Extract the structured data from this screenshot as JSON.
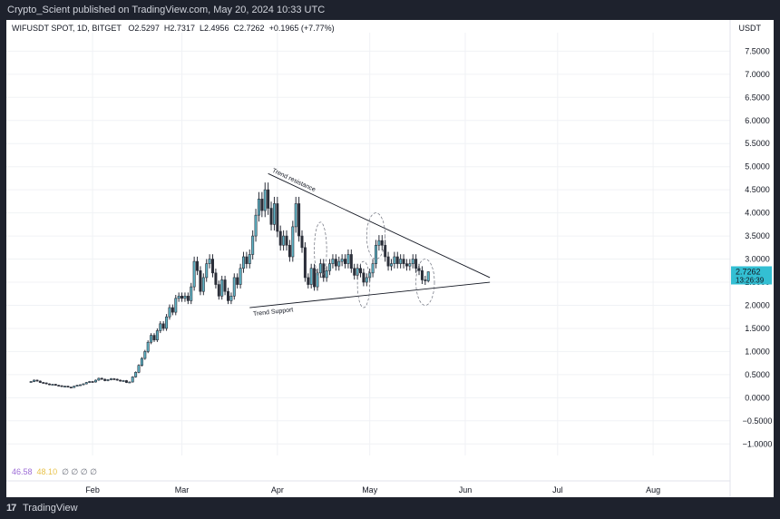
{
  "header": {
    "published_by": "Crypto_Scient published on TradingView.com, May 20, 2024 10:33 UTC"
  },
  "legend": {
    "symbol": "WIFUSDT SPOT, 1D, BITGET",
    "open": "O2.5297",
    "high": "H2.7317",
    "low": "L2.4956",
    "close": "C2.7262",
    "change": "+0.1965 (+7.77%)"
  },
  "axis": {
    "currency": "USDT",
    "last_price": "2.7262",
    "countdown": "13:26:39"
  },
  "oscillator": {
    "value1": "46.58",
    "value2": "48.10",
    "placeholders": "∅ ∅ ∅ ∅"
  },
  "footer": {
    "logo": "17",
    "brand": "TradingView"
  },
  "chart_data": {
    "type": "candlestick",
    "y_axis": {
      "ticks": [
        -1.0,
        -0.5,
        0.0,
        0.5,
        1.0,
        1.5,
        2.0,
        2.5,
        3.0,
        3.5,
        4.0,
        4.5,
        5.0,
        5.5,
        6.0,
        6.5,
        7.0,
        7.5
      ],
      "tick_labels": [
        "−1.0000",
        "−0.5000",
        "0.0000",
        "0.5000",
        "1.0000",
        "1.5000",
        "2.0000",
        "2.5000",
        "3.0000",
        "3.5000",
        "4.0000",
        "4.5000",
        "5.0000",
        "5.5000",
        "6.0000",
        "6.5000",
        "7.0000",
        "7.5000"
      ],
      "range": [
        -1.25,
        7.9
      ]
    },
    "x_axis": {
      "labels": [
        "Feb",
        "Mar",
        "Apr",
        "May",
        "Jun",
        "Jul",
        "Aug"
      ],
      "label_dates": [
        "2024-02-01",
        "2024-03-01",
        "2024-04-01",
        "2024-05-01",
        "2024-06-01",
        "2024-07-01",
        "2024-08-01"
      ],
      "range": [
        "2024-01-04",
        "2024-08-26"
      ]
    },
    "closes": [
      {
        "date": "2024-01-12",
        "value": 0.35
      },
      {
        "date": "2024-01-13",
        "value": 0.38
      },
      {
        "date": "2024-01-14",
        "value": 0.36
      },
      {
        "date": "2024-01-15",
        "value": 0.33
      },
      {
        "date": "2024-01-16",
        "value": 0.32
      },
      {
        "date": "2024-01-17",
        "value": 0.3
      },
      {
        "date": "2024-01-18",
        "value": 0.28
      },
      {
        "date": "2024-01-19",
        "value": 0.29
      },
      {
        "date": "2024-01-20",
        "value": 0.27
      },
      {
        "date": "2024-01-21",
        "value": 0.26
      },
      {
        "date": "2024-01-22",
        "value": 0.24
      },
      {
        "date": "2024-01-23",
        "value": 0.25
      },
      {
        "date": "2024-01-24",
        "value": 0.23
      },
      {
        "date": "2024-01-25",
        "value": 0.22
      },
      {
        "date": "2024-01-26",
        "value": 0.25
      },
      {
        "date": "2024-01-27",
        "value": 0.27
      },
      {
        "date": "2024-01-28",
        "value": 0.28
      },
      {
        "date": "2024-01-29",
        "value": 0.3
      },
      {
        "date": "2024-01-30",
        "value": 0.33
      },
      {
        "date": "2024-01-31",
        "value": 0.35
      },
      {
        "date": "2024-02-01",
        "value": 0.34
      },
      {
        "date": "2024-02-02",
        "value": 0.38
      },
      {
        "date": "2024-02-03",
        "value": 0.42
      },
      {
        "date": "2024-02-04",
        "value": 0.4
      },
      {
        "date": "2024-02-05",
        "value": 0.37
      },
      {
        "date": "2024-02-06",
        "value": 0.39
      },
      {
        "date": "2024-02-07",
        "value": 0.41
      },
      {
        "date": "2024-02-08",
        "value": 0.4
      },
      {
        "date": "2024-02-09",
        "value": 0.38
      },
      {
        "date": "2024-02-10",
        "value": 0.36
      },
      {
        "date": "2024-02-11",
        "value": 0.37
      },
      {
        "date": "2024-02-12",
        "value": 0.33
      },
      {
        "date": "2024-02-13",
        "value": 0.34
      },
      {
        "date": "2024-02-14",
        "value": 0.45
      },
      {
        "date": "2024-02-15",
        "value": 0.55
      },
      {
        "date": "2024-02-16",
        "value": 0.7
      },
      {
        "date": "2024-02-17",
        "value": 0.85
      },
      {
        "date": "2024-02-18",
        "value": 1.0
      },
      {
        "date": "2024-02-19",
        "value": 1.2
      },
      {
        "date": "2024-02-20",
        "value": 1.35
      },
      {
        "date": "2024-02-21",
        "value": 1.25
      },
      {
        "date": "2024-02-22",
        "value": 1.45
      },
      {
        "date": "2024-02-23",
        "value": 1.6
      },
      {
        "date": "2024-02-24",
        "value": 1.5
      },
      {
        "date": "2024-02-25",
        "value": 1.75
      },
      {
        "date": "2024-02-26",
        "value": 1.95
      },
      {
        "date": "2024-02-27",
        "value": 1.85
      },
      {
        "date": "2024-02-28",
        "value": 2.15
      },
      {
        "date": "2024-02-29",
        "value": 2.2
      },
      {
        "date": "2024-03-01",
        "value": 2.15
      },
      {
        "date": "2024-03-02",
        "value": 2.2
      },
      {
        "date": "2024-03-03",
        "value": 2.1
      },
      {
        "date": "2024-03-04",
        "value": 2.4
      },
      {
        "date": "2024-03-05",
        "value": 2.95
      },
      {
        "date": "2024-03-06",
        "value": 2.75
      },
      {
        "date": "2024-03-07",
        "value": 2.3
      },
      {
        "date": "2024-03-08",
        "value": 2.6
      },
      {
        "date": "2024-03-09",
        "value": 2.9
      },
      {
        "date": "2024-03-10",
        "value": 3.0
      },
      {
        "date": "2024-03-11",
        "value": 2.7
      },
      {
        "date": "2024-03-12",
        "value": 2.45
      },
      {
        "date": "2024-03-13",
        "value": 2.2
      },
      {
        "date": "2024-03-14",
        "value": 2.55
      },
      {
        "date": "2024-03-15",
        "value": 2.3
      },
      {
        "date": "2024-03-16",
        "value": 2.1
      },
      {
        "date": "2024-03-17",
        "value": 2.2
      },
      {
        "date": "2024-03-18",
        "value": 2.6
      },
      {
        "date": "2024-03-19",
        "value": 2.45
      },
      {
        "date": "2024-03-20",
        "value": 2.8
      },
      {
        "date": "2024-03-21",
        "value": 3.05
      },
      {
        "date": "2024-03-22",
        "value": 2.9
      },
      {
        "date": "2024-03-23",
        "value": 3.1
      },
      {
        "date": "2024-03-24",
        "value": 3.5
      },
      {
        "date": "2024-03-25",
        "value": 3.95
      },
      {
        "date": "2024-03-26",
        "value": 4.3
      },
      {
        "date": "2024-03-27",
        "value": 4.05
      },
      {
        "date": "2024-03-28",
        "value": 4.5
      },
      {
        "date": "2024-03-29",
        "value": 4.1
      },
      {
        "date": "2024-03-30",
        "value": 3.75
      },
      {
        "date": "2024-03-31",
        "value": 4.2
      },
      {
        "date": "2024-04-01",
        "value": 3.6
      },
      {
        "date": "2024-04-02",
        "value": 3.3
      },
      {
        "date": "2024-04-03",
        "value": 3.5
      },
      {
        "date": "2024-04-04",
        "value": 3.3
      },
      {
        "date": "2024-04-05",
        "value": 3.05
      },
      {
        "date": "2024-04-06",
        "value": 3.7
      },
      {
        "date": "2024-04-07",
        "value": 4.2
      },
      {
        "date": "2024-04-08",
        "value": 3.5
      },
      {
        "date": "2024-04-09",
        "value": 3.25
      },
      {
        "date": "2024-04-10",
        "value": 2.6
      },
      {
        "date": "2024-04-11",
        "value": 2.45
      },
      {
        "date": "2024-04-12",
        "value": 2.8
      },
      {
        "date": "2024-04-13",
        "value": 2.4
      },
      {
        "date": "2024-04-14",
        "value": 2.7
      },
      {
        "date": "2024-04-15",
        "value": 2.9
      },
      {
        "date": "2024-04-16",
        "value": 2.6
      },
      {
        "date": "2024-04-17",
        "value": 2.75
      },
      {
        "date": "2024-04-18",
        "value": 2.9
      },
      {
        "date": "2024-04-19",
        "value": 3.0
      },
      {
        "date": "2024-04-20",
        "value": 2.85
      },
      {
        "date": "2024-04-21",
        "value": 2.95
      },
      {
        "date": "2024-04-22",
        "value": 3.0
      },
      {
        "date": "2024-04-23",
        "value": 2.9
      },
      {
        "date": "2024-04-24",
        "value": 3.1
      },
      {
        "date": "2024-04-25",
        "value": 2.8
      },
      {
        "date": "2024-04-26",
        "value": 2.65
      },
      {
        "date": "2024-04-27",
        "value": 2.8
      },
      {
        "date": "2024-04-28",
        "value": 2.7
      },
      {
        "date": "2024-04-29",
        "value": 2.5
      },
      {
        "date": "2024-04-30",
        "value": 2.6
      },
      {
        "date": "2024-05-01",
        "value": 2.7
      },
      {
        "date": "2024-05-02",
        "value": 2.9
      },
      {
        "date": "2024-05-03",
        "value": 3.3
      },
      {
        "date": "2024-05-04",
        "value": 3.4
      },
      {
        "date": "2024-05-05",
        "value": 3.3
      },
      {
        "date": "2024-05-06",
        "value": 3.05
      },
      {
        "date": "2024-05-07",
        "value": 2.85
      },
      {
        "date": "2024-05-08",
        "value": 2.9
      },
      {
        "date": "2024-05-09",
        "value": 3.05
      },
      {
        "date": "2024-05-10",
        "value": 2.9
      },
      {
        "date": "2024-05-11",
        "value": 3.0
      },
      {
        "date": "2024-05-12",
        "value": 2.9
      },
      {
        "date": "2024-05-13",
        "value": 2.85
      },
      {
        "date": "2024-05-14",
        "value": 2.9
      },
      {
        "date": "2024-05-15",
        "value": 3.0
      },
      {
        "date": "2024-05-16",
        "value": 2.8
      },
      {
        "date": "2024-05-17",
        "value": 2.75
      },
      {
        "date": "2024-05-18",
        "value": 2.55
      },
      {
        "date": "2024-05-19",
        "value": 2.53
      },
      {
        "date": "2024-05-20",
        "value": 2.7262
      }
    ],
    "last_candle": {
      "date": "2024-05-20",
      "open": 2.5297,
      "high": 2.7317,
      "low": 2.4956,
      "close": 2.7262
    },
    "annotations": [
      {
        "type": "trendline",
        "label": "Trend resistance",
        "from": {
          "date": "2024-03-29",
          "value": 4.85
        },
        "to": {
          "date": "2024-06-09",
          "value": 2.6
        }
      },
      {
        "type": "trendline",
        "label": "Trend Support",
        "from": {
          "date": "2024-03-23",
          "value": 1.95
        },
        "to": {
          "date": "2024-06-09",
          "value": 2.5
        }
      },
      {
        "type": "ellipse",
        "center": {
          "date": "2024-04-15",
          "value": 3.2
        },
        "span_days": 2,
        "span_value": 0.6
      },
      {
        "type": "ellipse",
        "center": {
          "date": "2024-04-29",
          "value": 2.45
        },
        "span_days": 2,
        "span_value": 0.5
      },
      {
        "type": "ellipse",
        "center": {
          "date": "2024-05-03",
          "value": 3.5
        },
        "span_days": 3,
        "span_value": 0.5
      },
      {
        "type": "ellipse",
        "center": {
          "date": "2024-05-19",
          "value": 2.5
        },
        "span_days": 3,
        "span_value": 0.5
      }
    ],
    "grid": true,
    "legend": "top-left"
  }
}
